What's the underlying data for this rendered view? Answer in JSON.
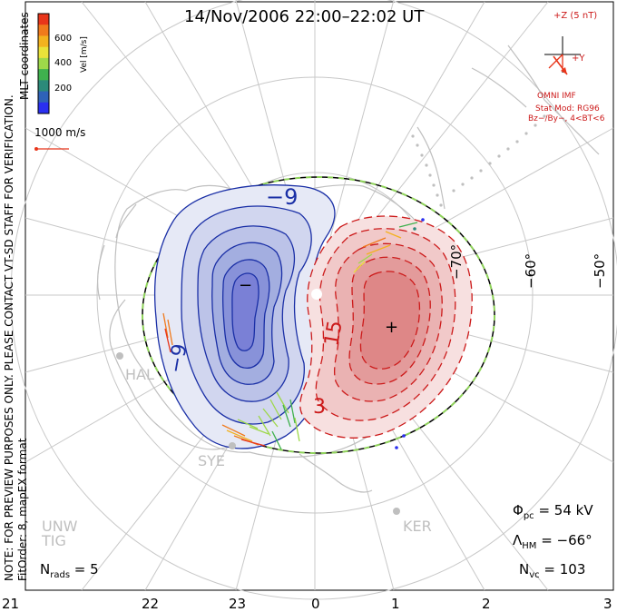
{
  "title": "14/Nov/2006 22:00–22:02 UT",
  "side_note": "NOTE: FOR PREVIEW PURPOSES ONLY. PLEASE CONTACT VT-SD STAFF FOR VERIFICATION.",
  "side_note2": "FitOrder: 8, mapEX format",
  "coords_label": "MLT coordinates",
  "colorbar": {
    "label": "Vel [m/s]",
    "ticks": [
      "600",
      "400",
      "200"
    ],
    "colors": [
      "#e8351a",
      "#f07a1c",
      "#f3b21f",
      "#e9e23a",
      "#9ed84a",
      "#3fb14e",
      "#2c8a7a",
      "#2f62b8",
      "#2a2ff0"
    ]
  },
  "vector_scale": "1000 m/s",
  "imf": {
    "z_label": "+Z (5 nT)",
    "y_label": "+Y",
    "title": "OMNI IMF",
    "model1": "Stat Mod: RG96",
    "model2": "Bz−/By−, 4<BT<6"
  },
  "stations": {
    "hal": "HAL",
    "sye": "SYE",
    "ker": "KER",
    "unw": "UNW",
    "tig": "TIG"
  },
  "contour_labels": {
    "neg_outer": "−9",
    "neg_lower": "−9",
    "neg_min": "−",
    "pos_15": "15",
    "pos_3": "3",
    "pos_max": "+"
  },
  "lat_labels": [
    "−50°",
    "−60°",
    "−70°"
  ],
  "stats": {
    "phi_sym": "Φ",
    "phi_sub": "pc",
    "phi_val": " = 54 kV",
    "lam_sym": "Λ",
    "lam_sub": "HM",
    "lam_val": " = −66°",
    "nvc_sym": "N",
    "nvc_sub": "vc",
    "nvc_val": " = 103",
    "nrads_sym": "N",
    "nrads_sub": "rads",
    "nrads_val": " = 5"
  },
  "mlt_ticks": [
    "21",
    "22",
    "23",
    "0",
    "1",
    "2",
    "3"
  ]
}
